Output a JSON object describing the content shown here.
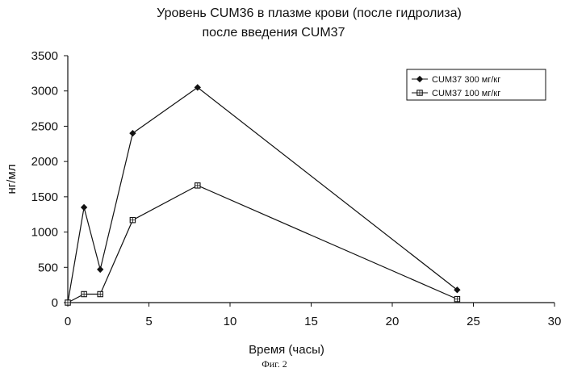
{
  "chart_data": {
    "type": "line",
    "title": [
      "Уровень CUM36 в плазме крови (после гидролиза)",
      "после введения CUM37"
    ],
    "xlabel": "Время (часы)",
    "ylabel": "нг/мл",
    "caption": "Фиг. 2",
    "xlim": [
      0,
      30
    ],
    "ylim": [
      0,
      3500
    ],
    "x_ticks": [
      0,
      5,
      10,
      15,
      20,
      25,
      30
    ],
    "y_ticks": [
      0,
      500,
      1000,
      1500,
      2000,
      2500,
      3000,
      3500
    ],
    "grid": false,
    "legend_position": "top-right",
    "series": [
      {
        "name": "CUM37 300  мг/кг",
        "marker": "diamond",
        "color": "#111111",
        "x": [
          0,
          1,
          2,
          4,
          8,
          24
        ],
        "y": [
          0,
          1350,
          470,
          2400,
          3050,
          180
        ]
      },
      {
        "name": "CUM37 100  мг/кг",
        "marker": "square",
        "color": "#111111",
        "x": [
          0,
          1,
          2,
          4,
          8,
          24
        ],
        "y": [
          0,
          120,
          120,
          1170,
          1660,
          50
        ]
      }
    ]
  }
}
